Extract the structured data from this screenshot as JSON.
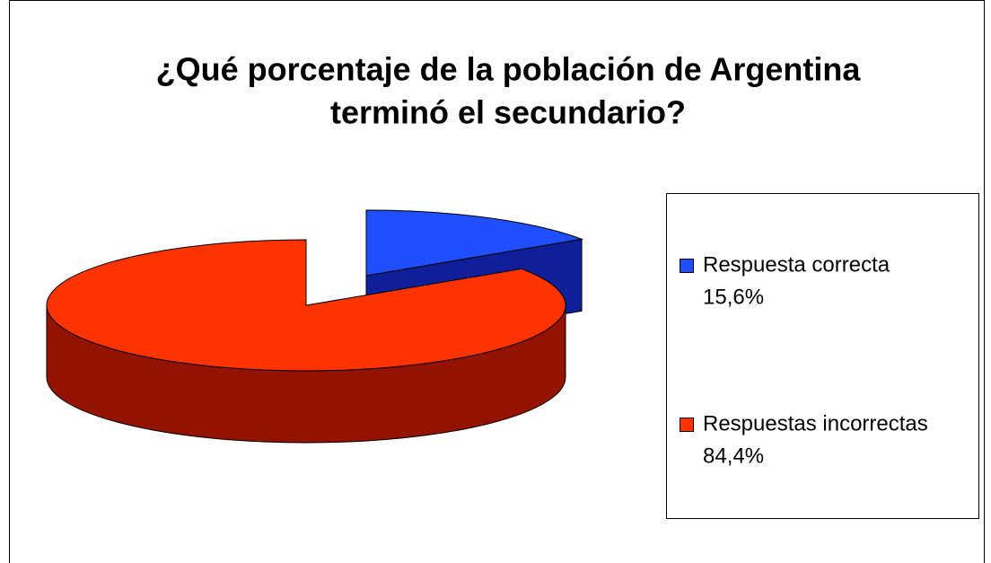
{
  "chart_data": {
    "type": "pie3d",
    "title": [
      "¿Qué porcentaje de la población de Argentina",
      "terminó el secundario?"
    ],
    "categories": [
      "Respuesta correcta",
      "Respuestas incorrectas"
    ],
    "values": [
      15.6,
      84.4
    ],
    "value_labels": [
      "15,6%",
      "84,4%"
    ],
    "colors": [
      "#1f4fff",
      "#ff3300"
    ],
    "side_colors": [
      "#0f1f99",
      "#941200"
    ],
    "explode": [
      true,
      false
    ],
    "legend": "right"
  }
}
